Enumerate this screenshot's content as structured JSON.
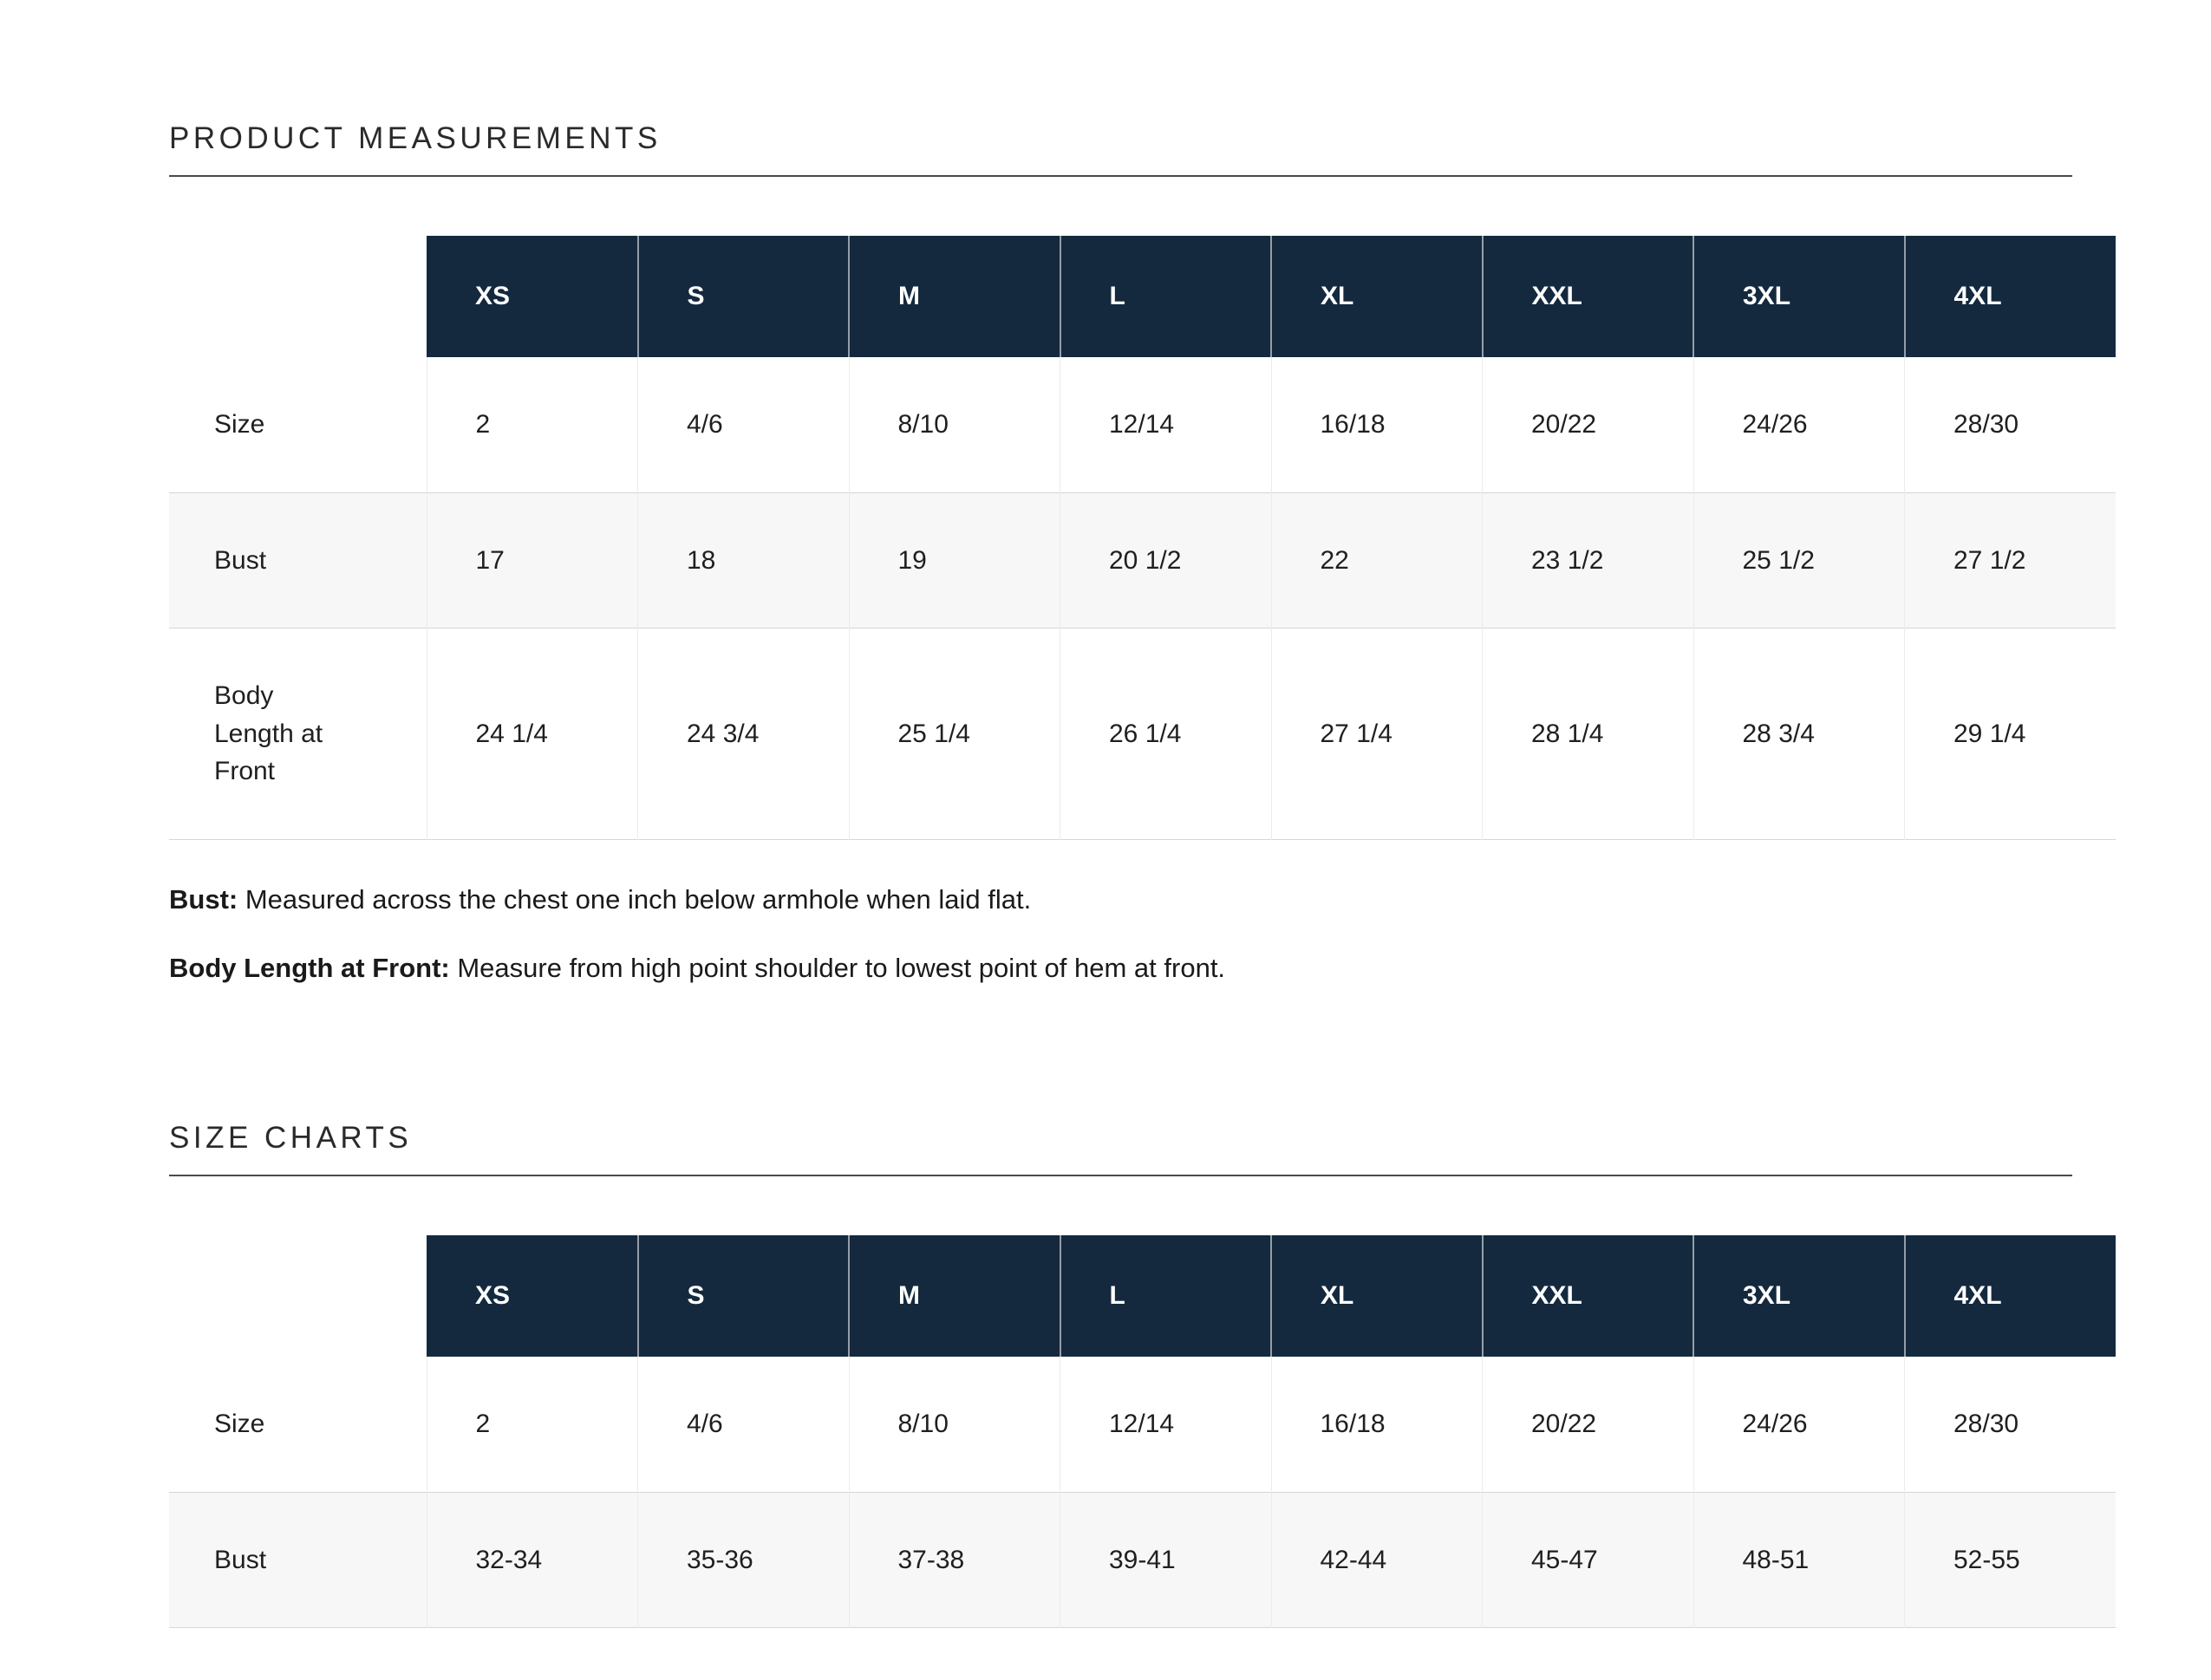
{
  "page": {
    "background": "#ffffff",
    "accent_color": "#14293e",
    "rule_color": "#4a4a4a",
    "alt_row_color": "#f7f7f7"
  },
  "sections": [
    {
      "title": "PRODUCT MEASUREMENTS",
      "table": {
        "columns": [
          "XS",
          "S",
          "M",
          "L",
          "XL",
          "XXL",
          "3XL",
          "4XL"
        ],
        "rows": [
          {
            "label": "Size",
            "values": [
              "2",
              "4/6",
              "8/10",
              "12/14",
              "16/18",
              "20/22",
              "24/26",
              "28/30"
            ]
          },
          {
            "label": "Bust",
            "values": [
              "17",
              "18",
              "19",
              "20 1/2",
              "22",
              "23 1/2",
              "25 1/2",
              "27 1/2"
            ]
          },
          {
            "label": "Body Length at Front",
            "values": [
              "24 1/4",
              "24 3/4",
              "25 1/4",
              "26 1/4",
              "27 1/4",
              "28 1/4",
              "28 3/4",
              "29 1/4"
            ]
          }
        ]
      },
      "notes": [
        {
          "bold": "Bust:",
          "text": " Measured across the chest one inch below armhole when laid flat."
        },
        {
          "bold": "Body Length at Front:",
          "text": " Measure from high point shoulder to lowest point of hem at front."
        }
      ]
    },
    {
      "title": "SIZE CHARTS",
      "table": {
        "columns": [
          "XS",
          "S",
          "M",
          "L",
          "XL",
          "XXL",
          "3XL",
          "4XL"
        ],
        "rows": [
          {
            "label": "Size",
            "values": [
              "2",
              "4/6",
              "8/10",
              "12/14",
              "16/18",
              "20/22",
              "24/26",
              "28/30"
            ]
          },
          {
            "label": "Bust",
            "values": [
              "32-34",
              "35-36",
              "37-38",
              "39-41",
              "42-44",
              "45-47",
              "48-51",
              "52-55"
            ]
          }
        ]
      },
      "notes": []
    }
  ]
}
